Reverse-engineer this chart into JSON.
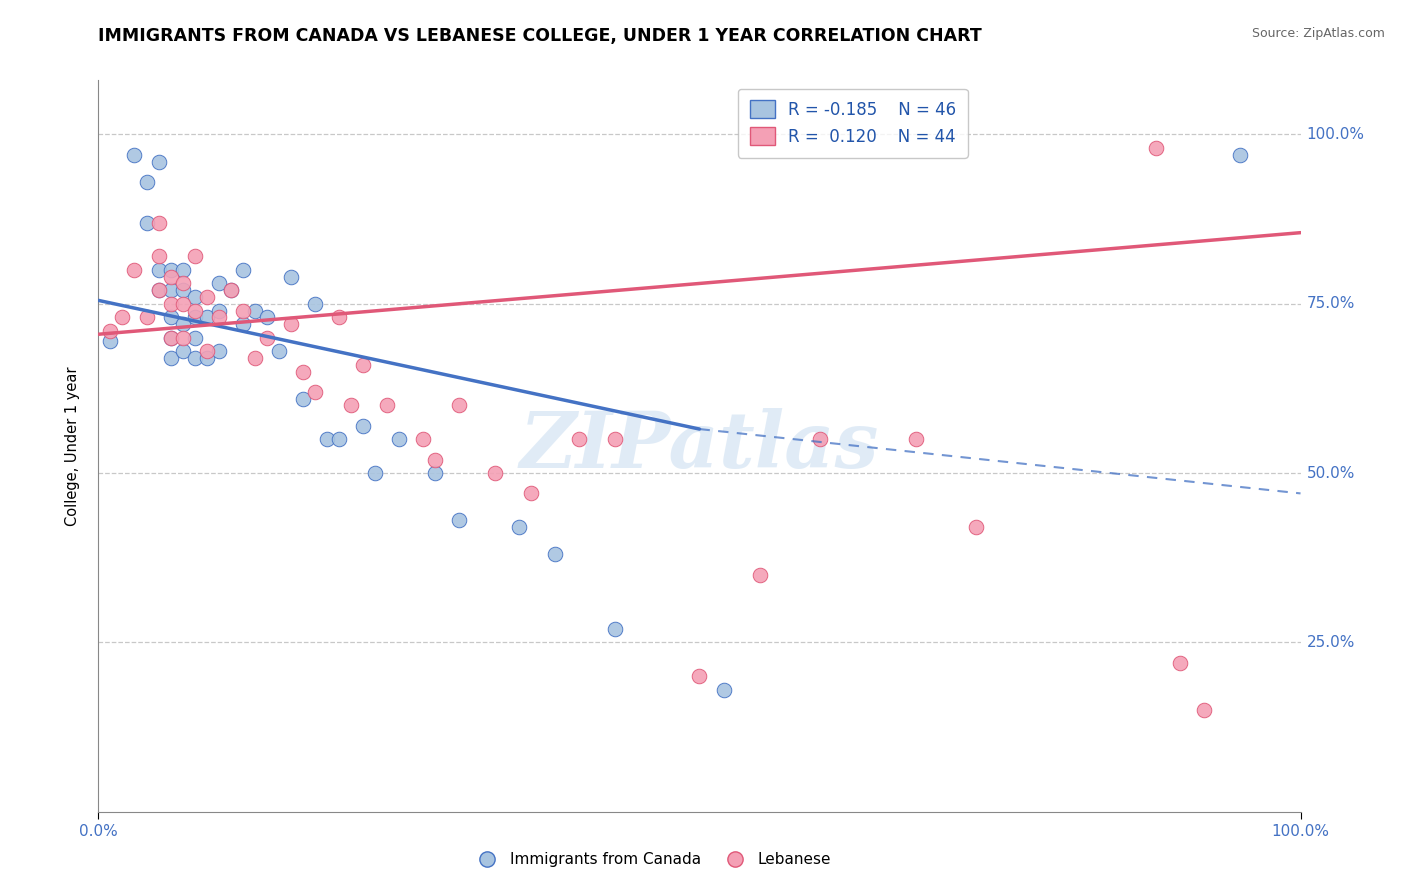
{
  "title": "IMMIGRANTS FROM CANADA VS LEBANESE COLLEGE, UNDER 1 YEAR CORRELATION CHART",
  "source": "Source: ZipAtlas.com",
  "ylabel": "College, Under 1 year",
  "ytick_labels": [
    "100.0%",
    "75.0%",
    "50.0%",
    "25.0%"
  ],
  "ytick_positions": [
    1.0,
    0.75,
    0.5,
    0.25
  ],
  "xlim": [
    0.0,
    1.0
  ],
  "ylim": [
    0.0,
    1.08
  ],
  "color_blue": "#A8C4E0",
  "color_pink": "#F4A0B5",
  "line_blue": "#4472C4",
  "line_pink": "#E05878",
  "watermark_color": "#C8DCF0",
  "blue_scatter_x": [
    0.01,
    0.03,
    0.04,
    0.04,
    0.05,
    0.05,
    0.05,
    0.06,
    0.06,
    0.06,
    0.06,
    0.06,
    0.07,
    0.07,
    0.07,
    0.07,
    0.08,
    0.08,
    0.08,
    0.08,
    0.09,
    0.09,
    0.1,
    0.1,
    0.1,
    0.11,
    0.12,
    0.12,
    0.13,
    0.14,
    0.15,
    0.16,
    0.17,
    0.18,
    0.19,
    0.2,
    0.22,
    0.23,
    0.25,
    0.28,
    0.3,
    0.35,
    0.38,
    0.43,
    0.52,
    0.95
  ],
  "blue_scatter_y": [
    0.695,
    0.97,
    0.93,
    0.87,
    0.96,
    0.8,
    0.77,
    0.8,
    0.77,
    0.73,
    0.7,
    0.67,
    0.8,
    0.77,
    0.72,
    0.68,
    0.76,
    0.73,
    0.7,
    0.67,
    0.73,
    0.67,
    0.78,
    0.74,
    0.68,
    0.77,
    0.8,
    0.72,
    0.74,
    0.73,
    0.68,
    0.79,
    0.61,
    0.75,
    0.55,
    0.55,
    0.57,
    0.5,
    0.55,
    0.5,
    0.43,
    0.42,
    0.38,
    0.27,
    0.18,
    0.97
  ],
  "pink_scatter_x": [
    0.01,
    0.02,
    0.03,
    0.04,
    0.05,
    0.05,
    0.05,
    0.06,
    0.06,
    0.06,
    0.07,
    0.07,
    0.07,
    0.08,
    0.08,
    0.09,
    0.09,
    0.1,
    0.11,
    0.12,
    0.13,
    0.14,
    0.16,
    0.17,
    0.18,
    0.2,
    0.21,
    0.22,
    0.24,
    0.27,
    0.28,
    0.3,
    0.33,
    0.36,
    0.4,
    0.43,
    0.5,
    0.55,
    0.6,
    0.68,
    0.73,
    0.88,
    0.9,
    0.92
  ],
  "pink_scatter_y": [
    0.71,
    0.73,
    0.8,
    0.73,
    0.87,
    0.82,
    0.77,
    0.79,
    0.75,
    0.7,
    0.78,
    0.75,
    0.7,
    0.82,
    0.74,
    0.76,
    0.68,
    0.73,
    0.77,
    0.74,
    0.67,
    0.7,
    0.72,
    0.65,
    0.62,
    0.73,
    0.6,
    0.66,
    0.6,
    0.55,
    0.52,
    0.6,
    0.5,
    0.47,
    0.55,
    0.55,
    0.2,
    0.35,
    0.55,
    0.55,
    0.42,
    0.98,
    0.22,
    0.15
  ],
  "blue_line_x0": 0.0,
  "blue_line_x_solid_end": 0.5,
  "blue_line_x1": 1.0,
  "blue_line_y0": 0.755,
  "blue_line_y_solid_end": 0.565,
  "blue_line_y1": 0.47,
  "pink_line_x0": 0.0,
  "pink_line_x1": 1.0,
  "pink_line_y0": 0.705,
  "pink_line_y1": 0.855
}
